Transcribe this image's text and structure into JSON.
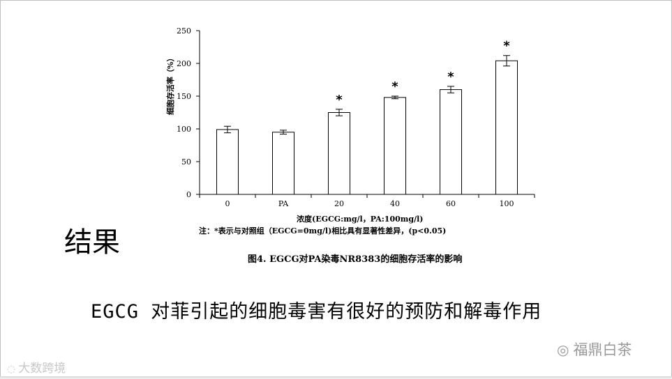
{
  "slide": {
    "section_title": "结果",
    "conclusion": "EGCG 对菲引起的细胞毒害有很好的预防和解毒作用",
    "figure_caption": "图4. EGCG对PA染毒NR8383的细胞存活率的影响",
    "note": "注：*表示与对照组（EGCG=0mg/l)相比具有显著性差异，(p<0.05)",
    "watermark_right": "福鼎白茶",
    "watermark_left": "大数跨境"
  },
  "chart_data": {
    "type": "bar",
    "title": "",
    "xlabel": "浓度(EGCG:mg/l，PA:100mg/l)",
    "ylabel": "细胞存活率（%）",
    "categories": [
      "0",
      "PA",
      "20",
      "40",
      "60",
      "100"
    ],
    "values": [
      99,
      95,
      125,
      148,
      160,
      204
    ],
    "errors": [
      5,
      3,
      5,
      2,
      5,
      8
    ],
    "significance": [
      "",
      "",
      "*",
      "*",
      "*",
      "*"
    ],
    "ylim": [
      0,
      250
    ],
    "yticks": [
      0,
      50,
      100,
      150,
      200,
      250
    ],
    "grid": false,
    "bar_color": "#ffffff",
    "stroke_color": "#000000"
  }
}
